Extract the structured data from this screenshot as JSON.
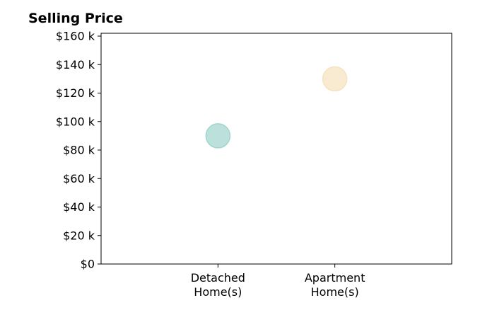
{
  "chart_data": {
    "type": "scatter",
    "title": "Selling Price",
    "xlabel": "",
    "ylabel": "",
    "categories": [
      "Detached\nHome(s)",
      "Apartment\nHome(s)"
    ],
    "category_colors": [
      "#9fd4cf",
      "#f6e2bd"
    ],
    "values": [
      90000,
      130000
    ],
    "xlim": [
      -1,
      2
    ],
    "ylim": [
      0,
      162000
    ],
    "yticks": [
      0,
      20000,
      40000,
      60000,
      80000,
      100000,
      120000,
      140000,
      160000
    ],
    "ytick_labels": [
      "$0",
      "$20 k",
      "$40 k",
      "$60 k",
      "$80 k",
      "$100 k",
      "$120 k",
      "$140 k",
      "$160 k"
    ],
    "grid": false,
    "legend": "none"
  }
}
